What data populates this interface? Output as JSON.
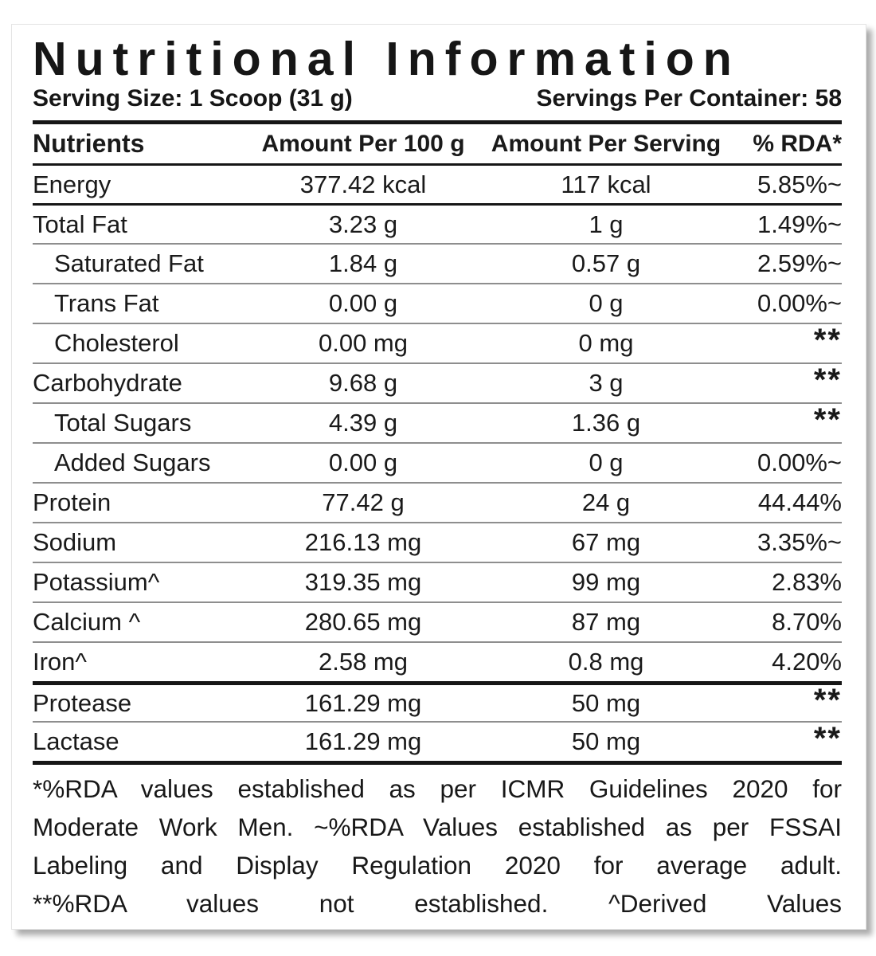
{
  "title": "Nutritional Information",
  "serving": {
    "size_label": "Serving Size: 1 Scoop (31 g)",
    "per_container_label": "Servings Per Container: 58"
  },
  "table": {
    "headers": [
      "Nutrients",
      "Amount Per 100 g",
      "Amount Per Serving",
      "% RDA*"
    ],
    "rows": [
      {
        "nutrient": "Energy",
        "per100": "377.42 kcal",
        "serving": "117 kcal",
        "rda": "5.85%~",
        "indent": false,
        "sep": "dark"
      },
      {
        "nutrient": "Total Fat",
        "per100": "3.23 g",
        "serving": "1 g",
        "rda": "1.49%~",
        "indent": false,
        "sep": "dark"
      },
      {
        "nutrient": "Saturated Fat",
        "per100": "1.84 g",
        "serving": "0.57 g",
        "rda": "2.59%~",
        "indent": true,
        "sep": "light"
      },
      {
        "nutrient": "Trans Fat",
        "per100": "0.00 g",
        "serving": "0 g",
        "rda": "0.00%~",
        "indent": true,
        "sep": "light"
      },
      {
        "nutrient": "Cholesterol",
        "per100": "0.00 mg",
        "serving": "0 mg",
        "rda": "**",
        "indent": true,
        "sep": "light"
      },
      {
        "nutrient": "Carbohydrate",
        "per100": "9.68 g",
        "serving": "3 g",
        "rda": "**",
        "indent": false,
        "sep": "light"
      },
      {
        "nutrient": "Total Sugars",
        "per100": "4.39 g",
        "serving": "1.36 g",
        "rda": "**",
        "indent": true,
        "sep": "light"
      },
      {
        "nutrient": "Added Sugars",
        "per100": "0.00 g",
        "serving": "0 g",
        "rda": "0.00%~",
        "indent": true,
        "sep": "light"
      },
      {
        "nutrient": "Protein",
        "per100": "77.42 g",
        "serving": "24 g",
        "rda": "44.44%",
        "indent": false,
        "sep": "light"
      },
      {
        "nutrient": "Sodium",
        "per100": "216.13 mg",
        "serving": "67 mg",
        "rda": "3.35%~",
        "indent": false,
        "sep": "light"
      },
      {
        "nutrient": "Potassium^",
        "per100": "319.35 mg",
        "serving": "99 mg",
        "rda": "2.83%",
        "indent": false,
        "sep": "light"
      },
      {
        "nutrient": "Calcium ^",
        "per100": "280.65 mg",
        "serving": "87 mg",
        "rda": "8.70%",
        "indent": false,
        "sep": "light"
      },
      {
        "nutrient": "Iron^",
        "per100": "2.58 mg",
        "serving": "0.8 mg",
        "rda": "4.20%",
        "indent": false,
        "sep": "light"
      },
      {
        "nutrient": "Protease",
        "per100": "161.29 mg",
        "serving": "50 mg",
        "rda": "**",
        "indent": false,
        "sep": "thick"
      },
      {
        "nutrient": "Lactase",
        "per100": "161.29 mg",
        "serving": "50 mg",
        "rda": "**",
        "indent": false,
        "sep": "light"
      }
    ]
  },
  "footnote_lines": [
    "*%RDA values established as per ICMR Guidelines 2020 for",
    "Moderate Work Men. ~%RDA Values established as per FSSAI",
    "Labeling and Display Regulation 2020 for average adult.",
    "**%RDA values not established. ^Derived Values"
  ],
  "colors": {
    "text": "#1a1a1a",
    "background": "#ffffff",
    "rule_dark": "#161616",
    "rule_light": "#8e8e8e"
  }
}
